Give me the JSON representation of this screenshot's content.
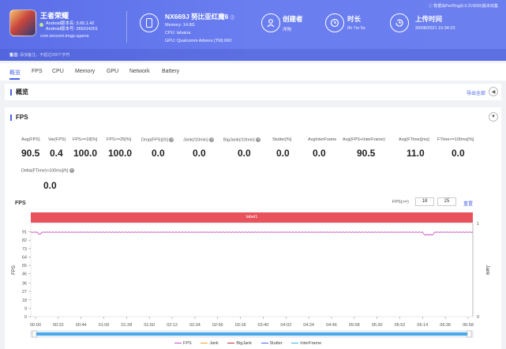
{
  "app": {
    "name": "王者荣耀",
    "android_ver": "Android版本名: 3.65.1.42",
    "android_code": "Android版本号: 365014201",
    "package": "com.tencent.tmgp.sgame"
  },
  "device": {
    "name": "NX669J 努比亚红魔6",
    "memory": "Memory: 14.8G",
    "cpu": "CPU: lahaina",
    "gpu": "GPU: Qualcomm Adreno (TM) 660"
  },
  "creator": {
    "label": "创建者",
    "value": "洋狗"
  },
  "duration": {
    "label": "时长",
    "value": "0h 7m 5s"
  },
  "upload": {
    "label": "上传时间",
    "value": "30/08/2021 15:34:23"
  },
  "top_note": "ⓘ 数据由PerfDog(6.0.210830)版本收集",
  "remark": {
    "label": "备注:",
    "placeholder": "添加备注，不超过200个字符"
  },
  "tabs": [
    "概览",
    "FPS",
    "CPU",
    "Memory",
    "GPU",
    "Network",
    "Battery"
  ],
  "overview": {
    "title": "概览",
    "export": "导出全部"
  },
  "fps_section": {
    "title": "FPS",
    "metrics": [
      {
        "label": "Avg(FPS)",
        "value": "90.5"
      },
      {
        "label": "Var(FPS)",
        "value": "0.4"
      },
      {
        "label": "FPS>=18[%]",
        "value": "100.0"
      },
      {
        "label": "FPS>=25[%]",
        "value": "100.0"
      },
      {
        "label": "Drop(FPS)[/h]",
        "value": "0.0"
      },
      {
        "label": "Jank(/10min)",
        "value": "0.0"
      },
      {
        "label": "BigJank(/10min)",
        "value": "0.0"
      },
      {
        "label": "Stutter[%]",
        "value": "0.0"
      },
      {
        "label": "AvgInterFrame",
        "value": "0.0"
      },
      {
        "label": "Avg(FPS+InterFrame)",
        "value": "90.5"
      },
      {
        "label": "Avg(FTime)[ms]",
        "value": "11.0"
      },
      {
        "label": "FTime>=100ms[%]",
        "value": "0.0"
      },
      {
        "label": "Delta(FTime)>100ms[/h]",
        "value": "0.0"
      }
    ],
    "chart_title": "FPS",
    "threshold_label": "FPS(>=)",
    "threshold_1": "18",
    "threshold_2": "25",
    "reset": "重置",
    "label_bar": "label1"
  },
  "chart_data": {
    "type": "line",
    "title": "FPS",
    "ylabel": "FPS",
    "y2label": "Jank",
    "ylim": [
      0,
      100
    ],
    "yticks": [
      0,
      9,
      18,
      27,
      36,
      46,
      55,
      64,
      73,
      82,
      91
    ],
    "y2ticks": [
      0,
      1
    ],
    "x_ticks": [
      "00:00",
      "00:22",
      "00:44",
      "01:06",
      "01:28",
      "01:50",
      "02:12",
      "02:34",
      "02:56",
      "03:18",
      "03:40",
      "04:02",
      "04:24",
      "04:46",
      "05:08",
      "05:30",
      "05:52",
      "06:14",
      "06:36",
      "06:58"
    ],
    "series": [
      {
        "name": "FPS",
        "color": "#c94fbf",
        "values": "approx 90-91 across 00:00-06:58 with dip to ~87 near 06:36"
      },
      {
        "name": "Jank",
        "color": "#f0a030",
        "values": []
      },
      {
        "name": "BigJank",
        "color": "#c0303a",
        "values": []
      },
      {
        "name": "Stutter",
        "color": "#4a63e8",
        "values": []
      },
      {
        "name": "InterFrame",
        "color": "#40b0e0",
        "values": []
      }
    ]
  }
}
